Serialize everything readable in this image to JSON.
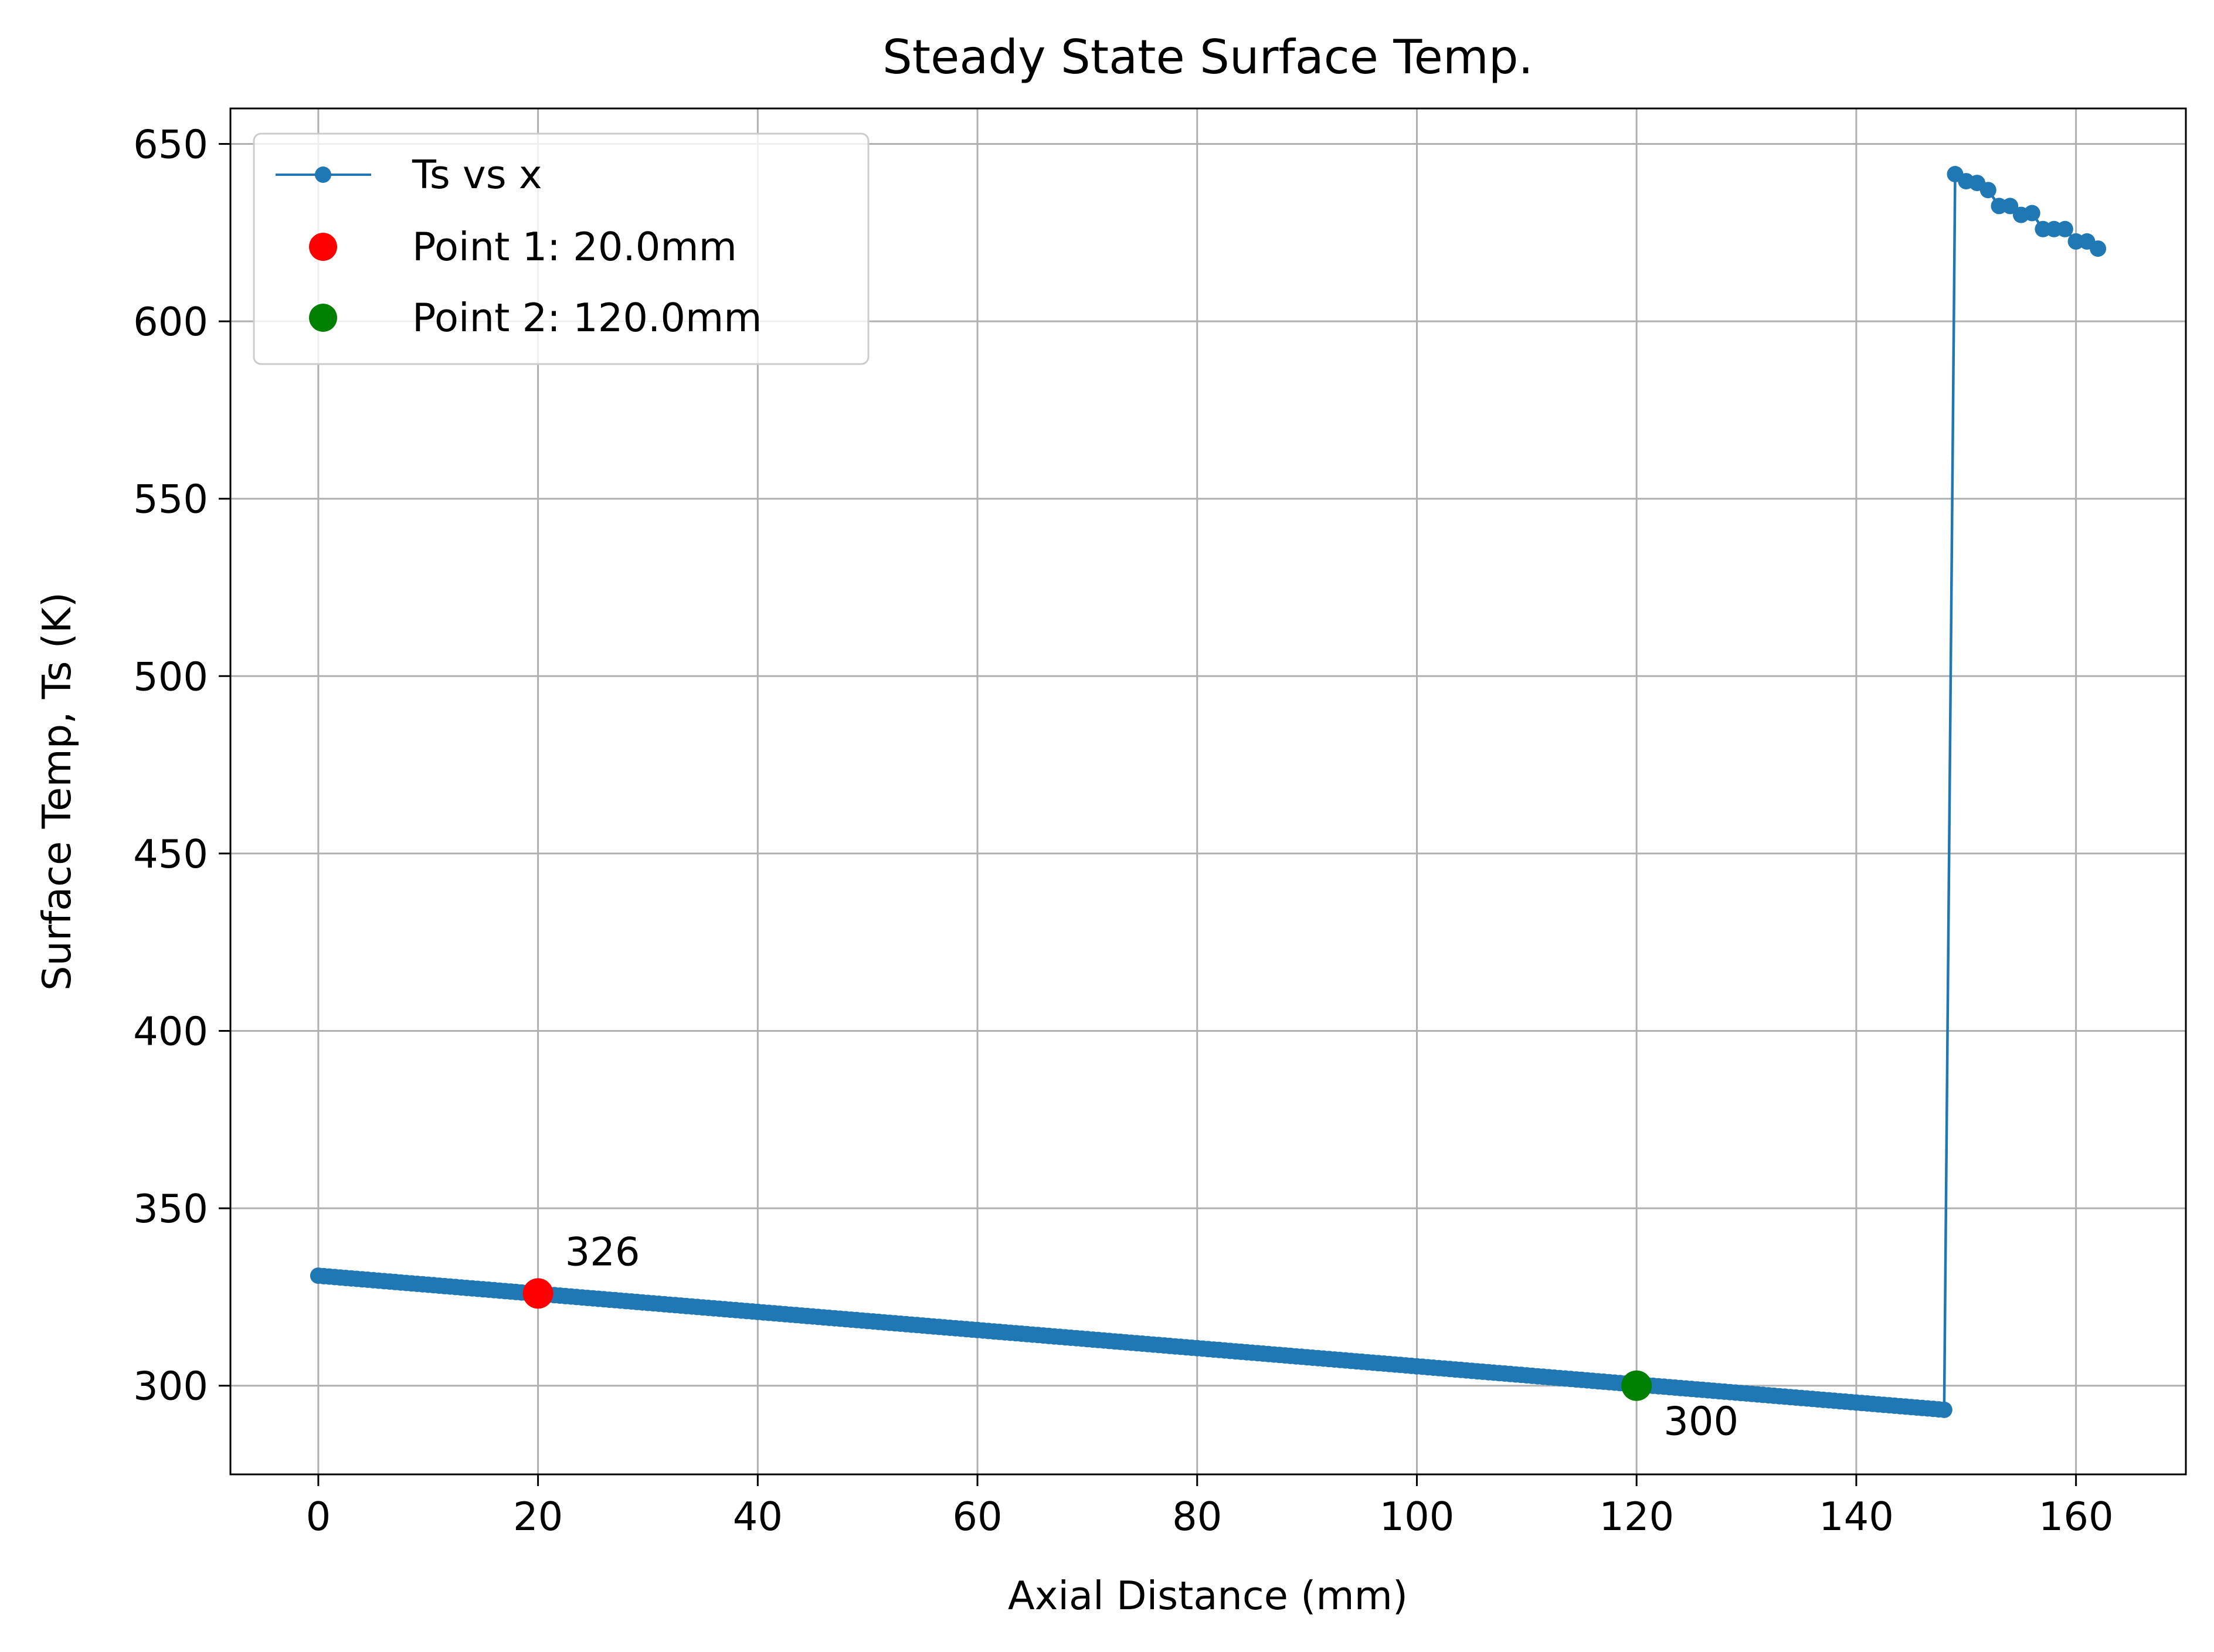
{
  "chart_data": {
    "type": "line",
    "title": "Steady State Surface Temp.",
    "xlabel": "Axial Distance (mm)",
    "ylabel": "Surface Temp, Ts (K)",
    "xlim": [
      -8,
      170
    ],
    "ylim": [
      275,
      660
    ],
    "xticks": [
      0,
      20,
      40,
      60,
      80,
      100,
      120,
      140,
      160
    ],
    "yticks": [
      300,
      350,
      400,
      450,
      500,
      550,
      600,
      650
    ],
    "grid": true,
    "legend_placement": "top-left",
    "colors": {
      "series": "#1f77b4",
      "point1": "#ff0000",
      "point2": "#008000",
      "grid": "#b0b0b0"
    },
    "series": [
      {
        "name": "Ts vs x",
        "linear_segment": {
          "x_start": 0,
          "x_end": 148,
          "y_start": 331,
          "y_end": 293.2,
          "step": 0.5
        },
        "tail_points": [
          {
            "x": 148.0,
            "y": 293.2
          },
          {
            "x": 149.0,
            "y": 641.5
          },
          {
            "x": 150.0,
            "y": 639.5
          },
          {
            "x": 151.0,
            "y": 639.0
          },
          {
            "x": 152.0,
            "y": 637.0
          },
          {
            "x": 153.0,
            "y": 632.5
          },
          {
            "x": 154.0,
            "y": 632.5
          },
          {
            "x": 155.0,
            "y": 630.0
          },
          {
            "x": 156.0,
            "y": 630.5
          },
          {
            "x": 157.0,
            "y": 626.0
          },
          {
            "x": 158.0,
            "y": 626.0
          },
          {
            "x": 159.0,
            "y": 626.0
          },
          {
            "x": 160.0,
            "y": 622.5
          },
          {
            "x": 161.0,
            "y": 622.5
          },
          {
            "x": 162.0,
            "y": 620.5
          }
        ]
      }
    ],
    "highlight_points": [
      {
        "name": "Point 1: 20.0mm",
        "x": 20.0,
        "y": 326,
        "label": "326",
        "label_side": "above-right",
        "color": "#ff0000"
      },
      {
        "name": "Point 2: 120.0mm",
        "x": 120.0,
        "y": 300,
        "label": "300",
        "label_side": "below-right",
        "color": "#008000"
      }
    ]
  }
}
